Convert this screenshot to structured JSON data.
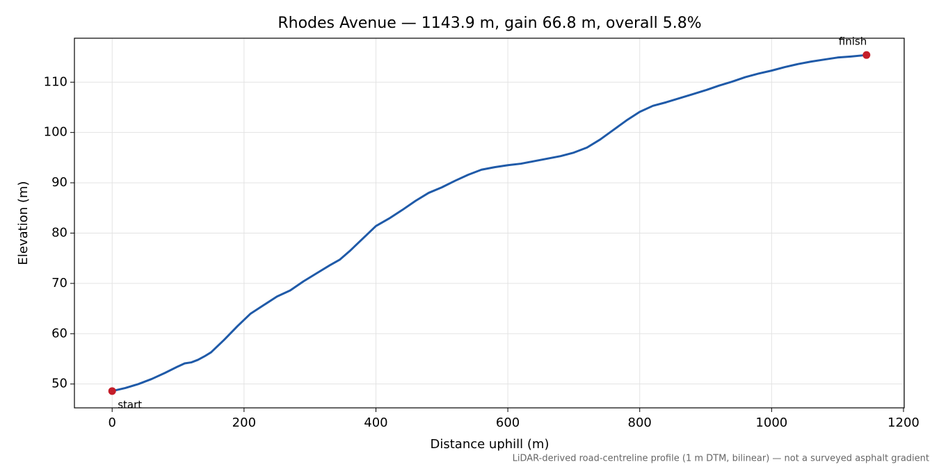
{
  "chart_data": {
    "type": "line",
    "title": "Rhodes Avenue — 1143.9 m, gain 66.8 m, overall 5.8%",
    "x_label": "Distance uphill (m)",
    "y_label": "Elevation (m)",
    "note": "LiDAR-derived road-centreline profile (1 m DTM, bilinear) — not a surveyed asphalt gradient",
    "annotations": [
      "start",
      "finish"
    ],
    "endpoint_color": "#c41e2a",
    "x": [
      0,
      20,
      40,
      60,
      80,
      100,
      110,
      120,
      130,
      140,
      150,
      170,
      190,
      210,
      230,
      250,
      270,
      290,
      310,
      330,
      345,
      360,
      380,
      400,
      420,
      440,
      460,
      480,
      500,
      520,
      540,
      560,
      580,
      600,
      620,
      640,
      660,
      680,
      700,
      720,
      740,
      760,
      780,
      800,
      820,
      840,
      860,
      880,
      900,
      920,
      940,
      960,
      980,
      1000,
      1020,
      1040,
      1060,
      1080,
      1100,
      1120,
      1143.9
    ],
    "series": [
      {
        "name": "Elevation",
        "color": "#1f5aa8",
        "values": [
          48.6,
          49.2,
          50.0,
          51.0,
          52.2,
          53.5,
          54.1,
          54.3,
          54.8,
          55.5,
          56.3,
          58.8,
          61.5,
          64.0,
          65.7,
          67.4,
          68.6,
          70.4,
          72.0,
          73.6,
          74.7,
          76.4,
          78.9,
          81.4,
          82.9,
          84.6,
          86.4,
          88.0,
          89.1,
          90.4,
          91.6,
          92.6,
          93.1,
          93.5,
          93.8,
          94.3,
          94.8,
          95.3,
          96.0,
          97.0,
          98.6,
          100.5,
          102.4,
          104.1,
          105.3,
          106.0,
          106.8,
          107.6,
          108.4,
          109.3,
          110.1,
          111.0,
          111.7,
          112.3,
          113.0,
          113.6,
          114.1,
          114.5,
          114.9,
          115.1,
          115.4
        ]
      }
    ],
    "xlim": [
      -57.2,
      1201.1
    ],
    "xticks": [
      0,
      200,
      400,
      600,
      800,
      1000,
      1200
    ],
    "ylim": [
      45.26,
      118.74
    ],
    "yticks": [
      50,
      60,
      70,
      80,
      90,
      100,
      110
    ],
    "grid": true
  }
}
